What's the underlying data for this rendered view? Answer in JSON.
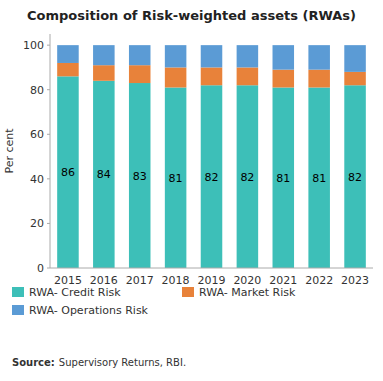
{
  "chart_data": {
    "type": "bar",
    "stacked": true,
    "title": "Composition of Risk-weighted assets (RWAs)",
    "y_label": "Per cent",
    "categories": [
      "2015",
      "2016",
      "2017",
      "2018",
      "2019",
      "2020",
      "2021",
      "2022",
      "2023"
    ],
    "series": [
      {
        "name": "RWA- Credit Risk",
        "color": "#3dbfb8",
        "data_labels": true,
        "values": [
          86,
          84,
          83,
          81,
          82,
          82,
          81,
          81,
          82
        ]
      },
      {
        "name": "RWA- Market Risk",
        "color": "#e8823a",
        "values": [
          6,
          7,
          8,
          9,
          8,
          8,
          8,
          8,
          6
        ]
      },
      {
        "name": "RWA- Operations Risk",
        "color": "#5b9bd5",
        "values": [
          8,
          9,
          9,
          10,
          10,
          10,
          11,
          11,
          12
        ]
      }
    ],
    "ylim": [
      0,
      105
    ],
    "yticks": [
      0,
      20,
      40,
      60,
      80,
      100
    ],
    "grid": false,
    "legend": "bottom",
    "annotations": [
      "Source:",
      "Supervisory Returns, RBI."
    ]
  }
}
